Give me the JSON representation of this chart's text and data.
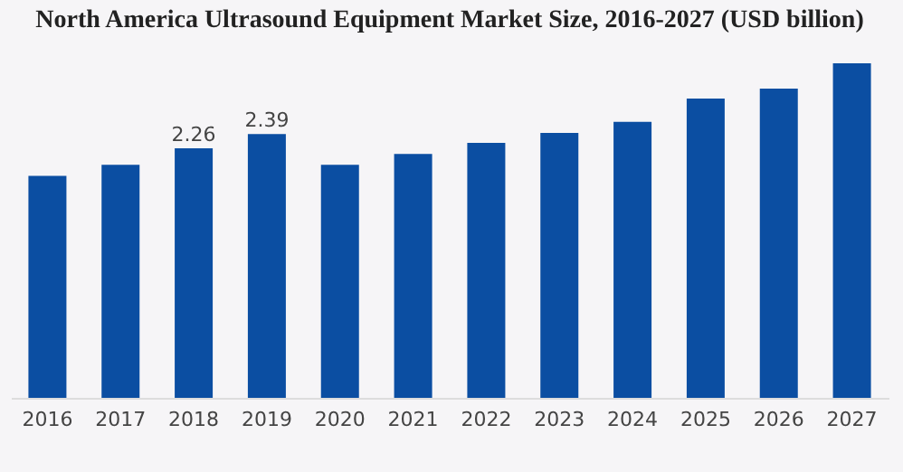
{
  "chart_data": {
    "type": "bar",
    "title": "North America Ultrasound Equipment Market Size, 2016-2027 (USD billion)",
    "categories": [
      "2016",
      "2017",
      "2018",
      "2019",
      "2020",
      "2021",
      "2022",
      "2023",
      "2024",
      "2025",
      "2026",
      "2027"
    ],
    "values": [
      2.01,
      2.11,
      2.26,
      2.39,
      2.11,
      2.21,
      2.31,
      2.4,
      2.5,
      2.71,
      2.8,
      3.03
    ],
    "value_labels": [
      null,
      null,
      "2.26",
      "2.39",
      null,
      null,
      null,
      null,
      null,
      null,
      null,
      null
    ],
    "color": "#0b4ea2",
    "tick_labels": "x",
    "grid": false
  }
}
